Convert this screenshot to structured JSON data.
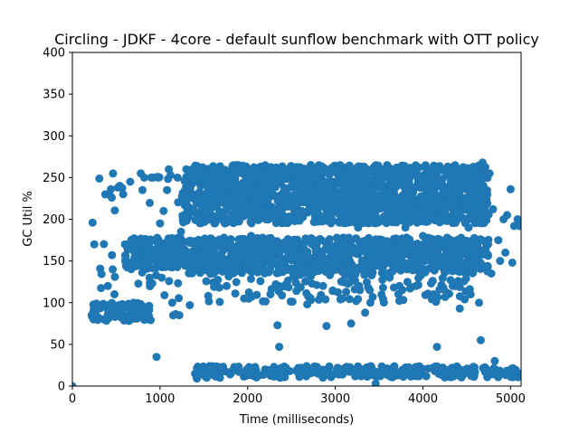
{
  "chart_data": {
    "type": "scatter",
    "title": "Circling - JDKF - 4core -  default sunflow benchmark with OTT policy",
    "xlabel": "Time (milliseconds)",
    "ylabel": "GC Util %",
    "xlim": [
      0,
      5120
    ],
    "ylim": [
      0,
      400
    ],
    "xticks": [
      0,
      1000,
      2000,
      3000,
      4000,
      5000
    ],
    "yticks": [
      0,
      50,
      100,
      150,
      200,
      250,
      300,
      350,
      400
    ],
    "grid": false,
    "marker_color": "#1f77b4",
    "series": [
      {
        "points": [
          [
            0,
            0
          ],
          [
            230,
            196
          ],
          [
            250,
            170
          ],
          [
            220,
            85
          ],
          [
            240,
            80
          ],
          [
            260,
            90
          ],
          [
            280,
            95
          ],
          [
            300,
            82
          ],
          [
            420,
            82
          ],
          [
            440,
            236
          ],
          [
            460,
            140
          ],
          [
            480,
            110
          ],
          [
            500,
            85
          ],
          [
            520,
            238
          ],
          [
            540,
            240
          ],
          [
            580,
            230
          ],
          [
            600,
            170
          ],
          [
            620,
            95
          ],
          [
            640,
            80
          ],
          [
            660,
            245
          ],
          [
            680,
            90
          ],
          [
            700,
            100
          ],
          [
            720,
            170
          ],
          [
            740,
            150
          ],
          [
            760,
            95
          ],
          [
            780,
            255
          ],
          [
            800,
            235
          ],
          [
            820,
            250
          ],
          [
            840,
            175
          ],
          [
            860,
            165
          ],
          [
            880,
            130
          ],
          [
            900,
            250
          ],
          [
            920,
            250
          ],
          [
            940,
            175
          ],
          [
            960,
            35
          ],
          [
            980,
            250
          ],
          [
            1000,
            195
          ],
          [
            1020,
            130
          ],
          [
            1040,
            210
          ],
          [
            1060,
            155
          ],
          [
            1080,
            235
          ],
          [
            1100,
            260
          ],
          [
            1120,
            175
          ],
          [
            1140,
            100
          ],
          [
            1160,
            145
          ],
          [
            1180,
            160
          ],
          [
            1200,
            250
          ],
          [
            1220,
            85
          ],
          [
            1240,
            185
          ],
          [
            1260,
            230
          ],
          [
            1300,
            260
          ],
          [
            1340,
            97
          ],
          [
            1360,
            145
          ],
          [
            1380,
            255
          ],
          [
            1400,
            15
          ],
          [
            1420,
            9
          ],
          [
            1440,
            230
          ],
          [
            1460,
            150
          ],
          [
            1480,
            220
          ],
          [
            1500,
            250
          ],
          [
            1520,
            170
          ],
          [
            1540,
            140
          ],
          [
            1560,
            200
          ],
          [
            1580,
            240
          ],
          [
            1600,
            15
          ],
          [
            1620,
            260
          ],
          [
            1640,
            225
          ],
          [
            1660,
            155
          ],
          [
            1680,
            235
          ],
          [
            1700,
            22
          ],
          [
            1720,
            250
          ],
          [
            1740,
            195
          ],
          [
            1760,
            120
          ],
          [
            1780,
            245
          ],
          [
            1800,
            14
          ],
          [
            1820,
            260
          ],
          [
            1840,
            145
          ],
          [
            1860,
            210
          ],
          [
            1880,
            265
          ],
          [
            1900,
            17
          ],
          [
            1920,
            230
          ],
          [
            1940,
            160
          ],
          [
            1960,
            105
          ],
          [
            1980,
            245
          ],
          [
            2000,
            20
          ],
          [
            2020,
            250
          ],
          [
            2040,
            180
          ],
          [
            2060,
            140
          ],
          [
            2080,
            235
          ],
          [
            2100,
            16
          ],
          [
            2120,
            260
          ],
          [
            2140,
            225
          ],
          [
            2160,
            155
          ],
          [
            2180,
            240
          ],
          [
            2200,
            20
          ],
          [
            2220,
            250
          ],
          [
            2240,
            200
          ],
          [
            2260,
            110
          ],
          [
            2280,
            245
          ],
          [
            2300,
            23
          ],
          [
            2320,
            260
          ],
          [
            2340,
            73
          ],
          [
            2360,
            47
          ],
          [
            2380,
            15
          ],
          [
            2400,
            230
          ],
          [
            2420,
            150
          ],
          [
            2440,
            220
          ],
          [
            2460,
            255
          ],
          [
            2480,
            18
          ],
          [
            2500,
            240
          ],
          [
            2520,
            165
          ],
          [
            2540,
            130
          ],
          [
            2560,
            245
          ],
          [
            2580,
            20
          ],
          [
            2600,
            260
          ],
          [
            2620,
            210
          ],
          [
            2640,
            150
          ],
          [
            2660,
            235
          ],
          [
            2680,
            98
          ],
          [
            2700,
            17
          ],
          [
            2720,
            265
          ],
          [
            2740,
            170
          ],
          [
            2760,
            225
          ],
          [
            2780,
            250
          ],
          [
            2800,
            15
          ],
          [
            2820,
            240
          ],
          [
            2840,
            160
          ],
          [
            2860,
            120
          ],
          [
            2880,
            245
          ],
          [
            2900,
            72
          ],
          [
            2920,
            20
          ],
          [
            2940,
            255
          ],
          [
            2960,
            200
          ],
          [
            2980,
            145
          ],
          [
            3000,
            230
          ],
          [
            3020,
            18
          ],
          [
            3040,
            260
          ],
          [
            3060,
            175
          ],
          [
            3080,
            105
          ],
          [
            3100,
            240
          ],
          [
            3120,
            22
          ],
          [
            3140,
            250
          ],
          [
            3160,
            210
          ],
          [
            3180,
            75
          ],
          [
            3200,
            160
          ],
          [
            3220,
            15
          ],
          [
            3240,
            255
          ],
          [
            3260,
            190
          ],
          [
            3280,
            115
          ],
          [
            3300,
            245
          ],
          [
            3320,
            20
          ],
          [
            3340,
            88
          ],
          [
            3360,
            230
          ],
          [
            3380,
            155
          ],
          [
            3400,
            100
          ],
          [
            3420,
            260
          ],
          [
            3440,
            17
          ],
          [
            3460,
            3
          ],
          [
            3480,
            245
          ],
          [
            3500,
            200
          ],
          [
            3520,
            150
          ],
          [
            3540,
            235
          ],
          [
            3560,
            18
          ],
          [
            3580,
            260
          ],
          [
            3600,
            170
          ],
          [
            3620,
            130
          ],
          [
            3640,
            240
          ],
          [
            3660,
            22
          ],
          [
            3680,
            250
          ],
          [
            3700,
            210
          ],
          [
            3720,
            110
          ],
          [
            3740,
            225
          ],
          [
            3760,
            15
          ],
          [
            3780,
            255
          ],
          [
            3800,
            190
          ],
          [
            3820,
            140
          ],
          [
            3840,
            245
          ],
          [
            3860,
            20
          ],
          [
            3880,
            230
          ],
          [
            3900,
            160
          ],
          [
            3920,
            120
          ],
          [
            3940,
            250
          ],
          [
            3960,
            17
          ],
          [
            3980,
            240
          ],
          [
            4000,
            180
          ],
          [
            4020,
            150
          ],
          [
            4040,
            225
          ],
          [
            4060,
            21
          ],
          [
            4080,
            255
          ],
          [
            4100,
            170
          ],
          [
            4120,
            110
          ],
          [
            4140,
            245
          ],
          [
            4160,
            47
          ],
          [
            4180,
            15
          ],
          [
            4200,
            260
          ],
          [
            4220,
            200
          ],
          [
            4240,
            155
          ],
          [
            4260,
            235
          ],
          [
            4280,
            19
          ],
          [
            4300,
            240
          ],
          [
            4320,
            165
          ],
          [
            4340,
            120
          ],
          [
            4360,
            250
          ],
          [
            4380,
            18
          ],
          [
            4400,
            230
          ],
          [
            4420,
            93
          ],
          [
            4440,
            140
          ],
          [
            4460,
            245
          ],
          [
            4480,
            16
          ],
          [
            4500,
            255
          ],
          [
            4520,
            190
          ],
          [
            4540,
            150
          ],
          [
            4560,
            220
          ],
          [
            4580,
            17
          ],
          [
            4600,
            240
          ],
          [
            4620,
            170
          ],
          [
            4640,
            100
          ],
          [
            4660,
            55
          ],
          [
            4680,
            268
          ],
          [
            4700,
            205
          ],
          [
            4720,
            160
          ],
          [
            4740,
            15
          ],
          [
            4760,
            255
          ],
          [
            4780,
            135
          ],
          [
            4800,
            212
          ],
          [
            4820,
            30
          ],
          [
            4840,
            17
          ],
          [
            4860,
            175
          ],
          [
            4880,
            150
          ],
          [
            4900,
            15
          ],
          [
            4920,
            200
          ],
          [
            4940,
            160
          ],
          [
            4960,
            205
          ],
          [
            4980,
            15
          ],
          [
            5000,
            236
          ],
          [
            5020,
            148
          ],
          [
            5040,
            192
          ],
          [
            5060,
            15
          ],
          [
            5080,
            200
          ],
          [
            5100,
            192
          ],
          [
            5120,
            15
          ]
        ]
      }
    ],
    "dense_bands": [
      {
        "x_from": 1250,
        "x_to": 4750,
        "y_from": 195,
        "y_to": 265,
        "count": 1500
      },
      {
        "x_from": 1250,
        "x_to": 4750,
        "y_from": 135,
        "y_to": 178,
        "count": 900
      },
      {
        "x_from": 1500,
        "x_to": 4600,
        "y_from": 100,
        "y_to": 135,
        "count": 120
      },
      {
        "x_from": 1400,
        "x_to": 5100,
        "y_from": 10,
        "y_to": 24,
        "count": 260
      },
      {
        "x_from": 600,
        "x_to": 1250,
        "y_from": 140,
        "y_to": 178,
        "count": 140
      },
      {
        "x_from": 220,
        "x_to": 900,
        "y_from": 78,
        "y_to": 100,
        "count": 70
      },
      {
        "x_from": 300,
        "x_to": 1250,
        "y_from": 80,
        "y_to": 260,
        "count": 40
      }
    ]
  }
}
